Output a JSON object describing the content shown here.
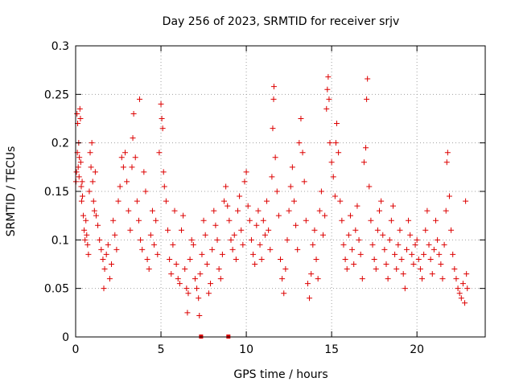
{
  "chart_data": {
    "type": "scatter",
    "title": "Day 256 of 2023, SRMTID for receiver srjv",
    "xlabel": "GPS time / hours",
    "ylabel": "SRMTID / TECUs",
    "xlim": [
      0,
      24
    ],
    "ylim": [
      0,
      0.3
    ],
    "xticks": [
      0,
      5,
      10,
      15,
      20
    ],
    "xtick_labels": [
      "0",
      "5",
      "10",
      "15",
      "20"
    ],
    "yticks": [
      0,
      0.05,
      0.1,
      0.15,
      0.2,
      0.25,
      0.3
    ],
    "ytick_labels": [
      "0",
      "0.05",
      "0.1",
      "0.15",
      "0.2",
      "0.25",
      "0.3"
    ],
    "grid": true,
    "marker_color": "#dd0000",
    "zero_markers": [
      7.35,
      8.95
    ],
    "points": [
      [
        0.02,
        0.16
      ],
      [
        0.05,
        0.17
      ],
      [
        0.08,
        0.23
      ],
      [
        0.1,
        0.19
      ],
      [
        0.12,
        0.22
      ],
      [
        0.15,
        0.175
      ],
      [
        0.18,
        0.2
      ],
      [
        0.2,
        0.165
      ],
      [
        0.22,
        0.185
      ],
      [
        0.25,
        0.235
      ],
      [
        0.28,
        0.225
      ],
      [
        0.3,
        0.18
      ],
      [
        0.33,
        0.155
      ],
      [
        0.35,
        0.14
      ],
      [
        0.38,
        0.16
      ],
      [
        0.4,
        0.145
      ],
      [
        0.45,
        0.125
      ],
      [
        0.5,
        0.11
      ],
      [
        0.55,
        0.1
      ],
      [
        0.6,
        0.12
      ],
      [
        0.65,
        0.105
      ],
      [
        0.7,
        0.095
      ],
      [
        0.75,
        0.085
      ],
      [
        0.8,
        0.15
      ],
      [
        0.85,
        0.19
      ],
      [
        0.9,
        0.175
      ],
      [
        0.95,
        0.2
      ],
      [
        1.0,
        0.16
      ],
      [
        1.05,
        0.14
      ],
      [
        1.1,
        0.13
      ],
      [
        1.15,
        0.17
      ],
      [
        1.2,
        0.125
      ],
      [
        1.3,
        0.115
      ],
      [
        1.4,
        0.1
      ],
      [
        1.5,
        0.09
      ],
      [
        1.6,
        0.08
      ],
      [
        1.65,
        0.05
      ],
      [
        1.7,
        0.07
      ],
      [
        1.8,
        0.085
      ],
      [
        1.9,
        0.095
      ],
      [
        2.0,
        0.06
      ],
      [
        2.1,
        0.075
      ],
      [
        2.2,
        0.12
      ],
      [
        2.3,
        0.105
      ],
      [
        2.4,
        0.09
      ],
      [
        2.5,
        0.14
      ],
      [
        2.6,
        0.155
      ],
      [
        2.7,
        0.185
      ],
      [
        2.8,
        0.175
      ],
      [
        2.9,
        0.19
      ],
      [
        3.0,
        0.16
      ],
      [
        3.1,
        0.13
      ],
      [
        3.2,
        0.11
      ],
      [
        3.3,
        0.175
      ],
      [
        3.35,
        0.205
      ],
      [
        3.4,
        0.23
      ],
      [
        3.5,
        0.185
      ],
      [
        3.6,
        0.14
      ],
      [
        3.7,
        0.12
      ],
      [
        3.75,
        0.245
      ],
      [
        3.8,
        0.1
      ],
      [
        3.9,
        0.09
      ],
      [
        4.0,
        0.17
      ],
      [
        4.1,
        0.15
      ],
      [
        4.2,
        0.08
      ],
      [
        4.3,
        0.07
      ],
      [
        4.4,
        0.105
      ],
      [
        4.5,
        0.13
      ],
      [
        4.6,
        0.095
      ],
      [
        4.7,
        0.12
      ],
      [
        4.8,
        0.085
      ],
      [
        4.9,
        0.19
      ],
      [
        5.0,
        0.24
      ],
      [
        5.05,
        0.225
      ],
      [
        5.1,
        0.215
      ],
      [
        5.15,
        0.17
      ],
      [
        5.2,
        0.155
      ],
      [
        5.3,
        0.14
      ],
      [
        5.4,
        0.11
      ],
      [
        5.5,
        0.08
      ],
      [
        5.6,
        0.065
      ],
      [
        5.7,
        0.095
      ],
      [
        5.8,
        0.13
      ],
      [
        5.9,
        0.075
      ],
      [
        6.0,
        0.06
      ],
      [
        6.1,
        0.055
      ],
      [
        6.2,
        0.11
      ],
      [
        6.3,
        0.125
      ],
      [
        6.4,
        0.07
      ],
      [
        6.5,
        0.05
      ],
      [
        6.55,
        0.025
      ],
      [
        6.6,
        0.045
      ],
      [
        6.7,
        0.08
      ],
      [
        6.8,
        0.1
      ],
      [
        6.9,
        0.095
      ],
      [
        7.0,
        0.06
      ],
      [
        7.1,
        0.05
      ],
      [
        7.2,
        0.04
      ],
      [
        7.25,
        0.022
      ],
      [
        7.3,
        0.065
      ],
      [
        7.4,
        0.085
      ],
      [
        7.5,
        0.12
      ],
      [
        7.6,
        0.105
      ],
      [
        7.7,
        0.075
      ],
      [
        7.8,
        0.045
      ],
      [
        7.9,
        0.055
      ],
      [
        8.0,
        0.09
      ],
      [
        8.1,
        0.13
      ],
      [
        8.2,
        0.115
      ],
      [
        8.3,
        0.1
      ],
      [
        8.4,
        0.07
      ],
      [
        8.5,
        0.06
      ],
      [
        8.6,
        0.085
      ],
      [
        8.7,
        0.14
      ],
      [
        8.8,
        0.155
      ],
      [
        8.9,
        0.135
      ],
      [
        9.0,
        0.12
      ],
      [
        9.1,
        0.1
      ],
      [
        9.2,
        0.09
      ],
      [
        9.3,
        0.105
      ],
      [
        9.4,
        0.08
      ],
      [
        9.5,
        0.13
      ],
      [
        9.6,
        0.145
      ],
      [
        9.7,
        0.11
      ],
      [
        9.8,
        0.095
      ],
      [
        9.9,
        0.16
      ],
      [
        10.0,
        0.17
      ],
      [
        10.1,
        0.135
      ],
      [
        10.2,
        0.12
      ],
      [
        10.3,
        0.1
      ],
      [
        10.4,
        0.085
      ],
      [
        10.5,
        0.075
      ],
      [
        10.6,
        0.115
      ],
      [
        10.7,
        0.13
      ],
      [
        10.8,
        0.095
      ],
      [
        10.9,
        0.08
      ],
      [
        11.0,
        0.12
      ],
      [
        11.1,
        0.105
      ],
      [
        11.2,
        0.14
      ],
      [
        11.3,
        0.11
      ],
      [
        11.4,
        0.09
      ],
      [
        11.5,
        0.165
      ],
      [
        11.55,
        0.215
      ],
      [
        11.6,
        0.245
      ],
      [
        11.62,
        0.258
      ],
      [
        11.7,
        0.185
      ],
      [
        11.8,
        0.15
      ],
      [
        11.9,
        0.125
      ],
      [
        12.0,
        0.08
      ],
      [
        12.1,
        0.06
      ],
      [
        12.2,
        0.045
      ],
      [
        12.3,
        0.07
      ],
      [
        12.4,
        0.1
      ],
      [
        12.5,
        0.13
      ],
      [
        12.6,
        0.155
      ],
      [
        12.7,
        0.175
      ],
      [
        12.8,
        0.14
      ],
      [
        12.9,
        0.115
      ],
      [
        13.0,
        0.09
      ],
      [
        13.1,
        0.2
      ],
      [
        13.2,
        0.225
      ],
      [
        13.3,
        0.19
      ],
      [
        13.4,
        0.16
      ],
      [
        13.5,
        0.12
      ],
      [
        13.6,
        0.055
      ],
      [
        13.7,
        0.04
      ],
      [
        13.8,
        0.065
      ],
      [
        13.9,
        0.095
      ],
      [
        14.0,
        0.11
      ],
      [
        14.1,
        0.08
      ],
      [
        14.2,
        0.06
      ],
      [
        14.3,
        0.13
      ],
      [
        14.4,
        0.15
      ],
      [
        14.5,
        0.105
      ],
      [
        14.6,
        0.125
      ],
      [
        14.7,
        0.235
      ],
      [
        14.75,
        0.255
      ],
      [
        14.8,
        0.268
      ],
      [
        14.85,
        0.245
      ],
      [
        14.9,
        0.2
      ],
      [
        15.0,
        0.18
      ],
      [
        15.1,
        0.165
      ],
      [
        15.2,
        0.145
      ],
      [
        15.25,
        0.2
      ],
      [
        15.3,
        0.22
      ],
      [
        15.4,
        0.19
      ],
      [
        15.5,
        0.14
      ],
      [
        15.6,
        0.12
      ],
      [
        15.7,
        0.095
      ],
      [
        15.8,
        0.08
      ],
      [
        15.9,
        0.07
      ],
      [
        16.0,
        0.105
      ],
      [
        16.1,
        0.125
      ],
      [
        16.2,
        0.09
      ],
      [
        16.3,
        0.075
      ],
      [
        16.4,
        0.11
      ],
      [
        16.5,
        0.135
      ],
      [
        16.6,
        0.1
      ],
      [
        16.7,
        0.085
      ],
      [
        16.8,
        0.06
      ],
      [
        16.9,
        0.18
      ],
      [
        17.0,
        0.195
      ],
      [
        17.05,
        0.245
      ],
      [
        17.1,
        0.266
      ],
      [
        17.2,
        0.155
      ],
      [
        17.3,
        0.12
      ],
      [
        17.4,
        0.095
      ],
      [
        17.5,
        0.08
      ],
      [
        17.6,
        0.07
      ],
      [
        17.7,
        0.11
      ],
      [
        17.8,
        0.13
      ],
      [
        17.9,
        0.14
      ],
      [
        18.0,
        0.105
      ],
      [
        18.1,
        0.09
      ],
      [
        18.2,
        0.075
      ],
      [
        18.3,
        0.06
      ],
      [
        18.4,
        0.1
      ],
      [
        18.5,
        0.12
      ],
      [
        18.6,
        0.135
      ],
      [
        18.7,
        0.085
      ],
      [
        18.8,
        0.07
      ],
      [
        18.9,
        0.095
      ],
      [
        19.0,
        0.11
      ],
      [
        19.1,
        0.08
      ],
      [
        19.2,
        0.065
      ],
      [
        19.3,
        0.05
      ],
      [
        19.4,
        0.09
      ],
      [
        19.5,
        0.12
      ],
      [
        19.6,
        0.105
      ],
      [
        19.7,
        0.085
      ],
      [
        19.8,
        0.075
      ],
      [
        19.9,
        0.095
      ],
      [
        20.0,
        0.1
      ],
      [
        20.1,
        0.08
      ],
      [
        20.2,
        0.07
      ],
      [
        20.3,
        0.06
      ],
      [
        20.4,
        0.085
      ],
      [
        20.5,
        0.11
      ],
      [
        20.6,
        0.13
      ],
      [
        20.7,
        0.095
      ],
      [
        20.8,
        0.08
      ],
      [
        20.9,
        0.065
      ],
      [
        21.0,
        0.09
      ],
      [
        21.1,
        0.12
      ],
      [
        21.2,
        0.1
      ],
      [
        21.3,
        0.085
      ],
      [
        21.4,
        0.075
      ],
      [
        21.5,
        0.06
      ],
      [
        21.6,
        0.095
      ],
      [
        21.7,
        0.13
      ],
      [
        21.75,
        0.18
      ],
      [
        21.8,
        0.19
      ],
      [
        21.9,
        0.145
      ],
      [
        22.0,
        0.11
      ],
      [
        22.1,
        0.085
      ],
      [
        22.2,
        0.07
      ],
      [
        22.3,
        0.06
      ],
      [
        22.4,
        0.05
      ],
      [
        22.5,
        0.045
      ],
      [
        22.6,
        0.04
      ],
      [
        22.7,
        0.055
      ],
      [
        22.8,
        0.035
      ],
      [
        22.85,
        0.14
      ],
      [
        22.9,
        0.065
      ],
      [
        22.95,
        0.05
      ]
    ]
  }
}
